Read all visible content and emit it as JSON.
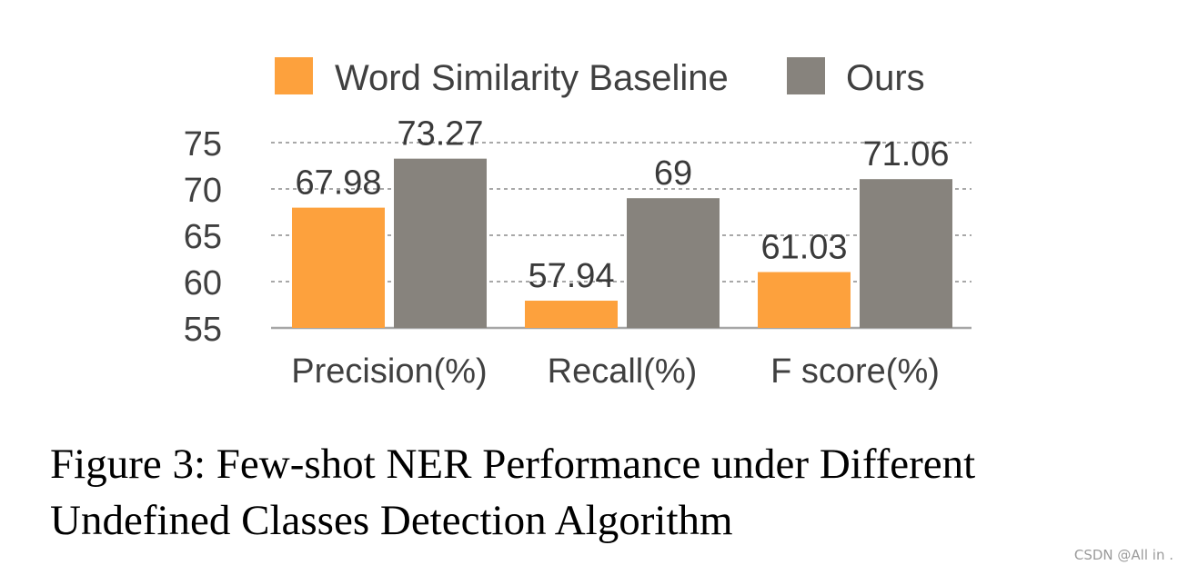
{
  "chart_data": {
    "type": "bar",
    "categories": [
      "Precision(%)",
      "Recall(%)",
      "F score(%)"
    ],
    "series": [
      {
        "name": "Word Similarity Baseline",
        "values": [
          67.98,
          57.94,
          61.03
        ],
        "labels": [
          "67.98",
          "57.94",
          "61.03"
        ],
        "color": "#fda13d"
      },
      {
        "name": "Ours",
        "values": [
          73.27,
          69,
          71.06
        ],
        "labels": [
          "73.27",
          "69",
          "71.06"
        ],
        "color": "#87837d"
      }
    ],
    "yticks": [
      "55",
      "60",
      "65",
      "70",
      "75"
    ],
    "ylim": [
      55,
      75
    ],
    "grid": true,
    "legend_position": "top"
  },
  "caption": {
    "line1": "Figure 3: Few-shot NER Performance under Different",
    "line2": "Undefined Classes Detection Algorithm"
  },
  "watermark": "CSDN @All in ."
}
